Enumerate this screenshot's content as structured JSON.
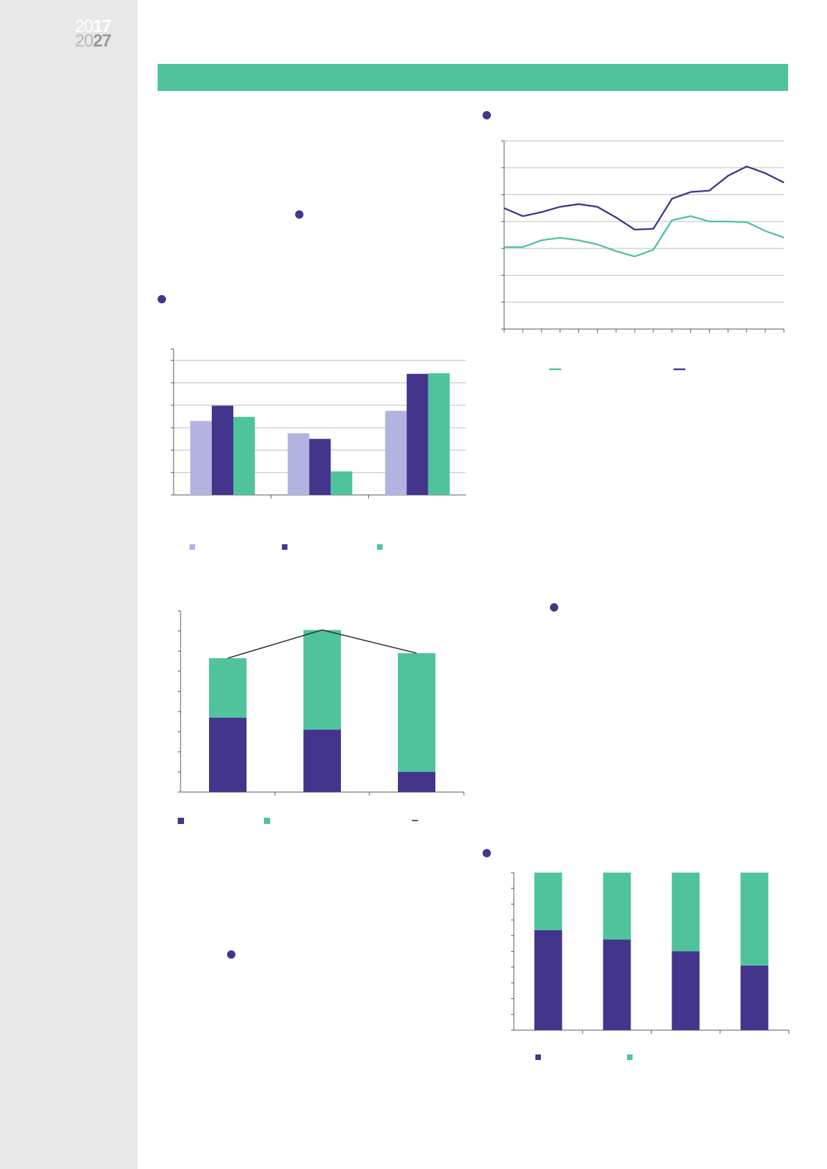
{
  "page": {
    "logo": {
      "year_top_light": "20",
      "year_top_bold": "17",
      "year_bottom_light": "20",
      "year_bottom_bold": "27"
    }
  },
  "colors": {
    "green": "#4fc39c",
    "purple": "#44358c",
    "lavender": "#b3b3e2",
    "band": "#4fc39c",
    "grid": "#bdbdbd",
    "axis": "#555555",
    "connector": "#333333"
  },
  "chart_data": [
    {
      "type": "line",
      "x": [
        1,
        2,
        3,
        4,
        5,
        6,
        7,
        8,
        9,
        10,
        11,
        12,
        13,
        14,
        15,
        16
      ],
      "ylim": [
        0,
        7
      ],
      "grid": true,
      "legend": "bottom",
      "series": [
        {
          "values": [
            3.05,
            3.05,
            3.3,
            3.4,
            3.3,
            3.15,
            2.9,
            2.7,
            2.95,
            4.05,
            4.2,
            4.0,
            4.0,
            3.98,
            3.65,
            3.4
          ],
          "color": "#4fc39c"
        },
        {
          "values": [
            4.5,
            4.2,
            4.35,
            4.55,
            4.65,
            4.55,
            4.15,
            3.7,
            3.73,
            4.85,
            5.1,
            5.15,
            5.7,
            6.05,
            5.8,
            5.45
          ],
          "color": "#44358c"
        }
      ]
    },
    {
      "type": "bar",
      "categories": [
        "",
        "",
        ""
      ],
      "ylim": [
        0,
        6.5
      ],
      "grid": true,
      "legend": "bottom",
      "series": [
        {
          "values": [
            3.3,
            2.75,
            3.75
          ],
          "color": "#b3b3e2"
        },
        {
          "values": [
            3.98,
            2.5,
            5.4
          ],
          "color": "#44358c"
        },
        {
          "values": [
            3.48,
            1.05,
            5.43
          ],
          "color": "#4fc39c"
        }
      ]
    },
    {
      "type": "bar",
      "stacked": true,
      "categories": [
        "",
        "",
        ""
      ],
      "ylim": [
        0,
        9
      ],
      "grid": false,
      "legend": "bottom",
      "series": [
        {
          "values": [
            3.7,
            3.1,
            1.0
          ],
          "color": "#44358c"
        },
        {
          "values": [
            2.95,
            4.95,
            5.9
          ],
          "color": "#4fc39c"
        }
      ],
      "line_totals": [
        6.65,
        8.05,
        6.9
      ]
    },
    {
      "type": "bar",
      "stacked": true,
      "categories": [
        "",
        "",
        "",
        ""
      ],
      "ylim": [
        0,
        100
      ],
      "grid": false,
      "legend": "bottom",
      "series": [
        {
          "values": [
            63.5,
            57.5,
            50,
            41
          ],
          "color": "#44358c"
        },
        {
          "values": [
            36.5,
            42.5,
            50,
            59
          ],
          "color": "#4fc39c"
        }
      ]
    }
  ]
}
